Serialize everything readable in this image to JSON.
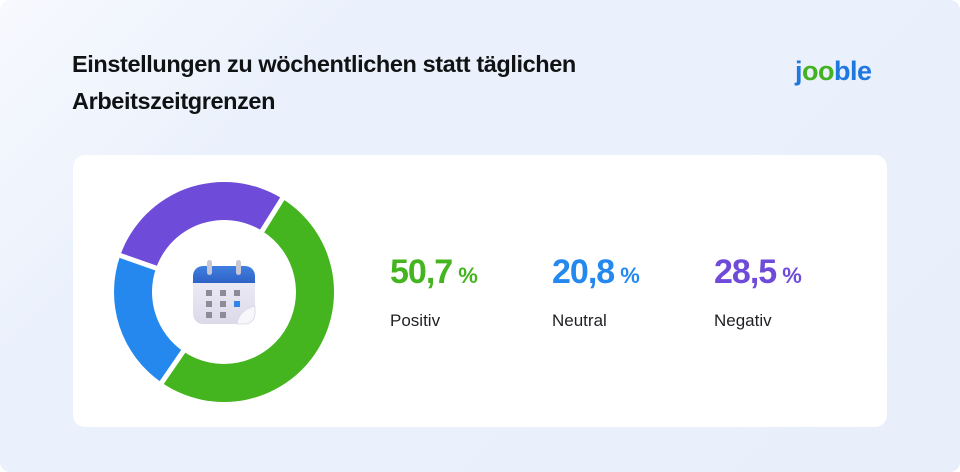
{
  "header": {
    "title": "Einstellungen zu wöchentlichen statt täglichen Arbeitszeitgrenzen"
  },
  "logo": {
    "parts": [
      "j",
      "oo",
      "ble"
    ],
    "text": "jooble",
    "colors": {
      "blue": "#1f78e0",
      "green": "#44b223"
    }
  },
  "center_icon": "calendar-icon",
  "stats": [
    {
      "value": "50,7",
      "unit": "%",
      "label": "Positiv",
      "color": "#44b51f"
    },
    {
      "value": "20,8",
      "unit": "%",
      "label": "Neutral",
      "color": "#2488ef"
    },
    {
      "value": "28,5",
      "unit": "%",
      "label": "Negativ",
      "color": "#6e4bd8"
    }
  ],
  "chart_data": {
    "type": "pie",
    "variant": "donut",
    "title": "Einstellungen zu wöchentlichen statt täglichen Arbeitszeitgrenzen",
    "categories": [
      "Positiv",
      "Neutral",
      "Negativ"
    ],
    "values": [
      50.7,
      20.8,
      28.5
    ],
    "unit": "%",
    "colors": [
      "#44b51f",
      "#2488ef",
      "#6e4bd8"
    ],
    "legend_position": "right",
    "start_angle_deg": 32,
    "direction": "clockwise"
  }
}
